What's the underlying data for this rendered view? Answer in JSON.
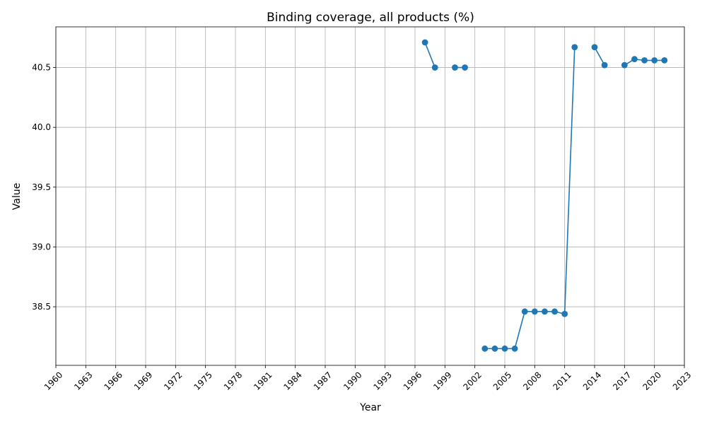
{
  "chart_data": {
    "type": "line",
    "title": "Binding coverage, all products (%)",
    "xlabel": "Year",
    "ylabel": "Value",
    "xlim": [
      1960,
      2023
    ],
    "ylim": [
      38.01,
      40.84
    ],
    "x_ticks": [
      1960,
      1963,
      1966,
      1969,
      1972,
      1975,
      1978,
      1981,
      1984,
      1987,
      1990,
      1993,
      1996,
      1999,
      2002,
      2005,
      2008,
      2011,
      2014,
      2017,
      2020,
      2023
    ],
    "y_ticks": [
      38.5,
      39.0,
      39.5,
      40.0,
      40.5
    ],
    "y_tick_labels": [
      "38.5",
      "39.0",
      "39.5",
      "40.0",
      "40.5"
    ],
    "grid": true,
    "color": "#1f77b4",
    "series": [
      {
        "x": [
          1997,
          1998,
          1999,
          2000,
          2001,
          2002,
          2003,
          2004,
          2005,
          2006,
          2007,
          2008,
          2009,
          2010,
          2011,
          2012,
          2013,
          2014,
          2015,
          2016,
          2017,
          2018,
          2019,
          2020,
          2021
        ],
        "values": [
          40.71,
          40.5,
          null,
          40.5,
          40.5,
          null,
          38.15,
          38.15,
          38.15,
          38.15,
          38.46,
          38.46,
          38.46,
          38.46,
          38.44,
          40.67,
          null,
          40.67,
          40.52,
          null,
          40.52,
          40.57,
          40.56,
          40.56,
          40.56
        ]
      }
    ]
  }
}
